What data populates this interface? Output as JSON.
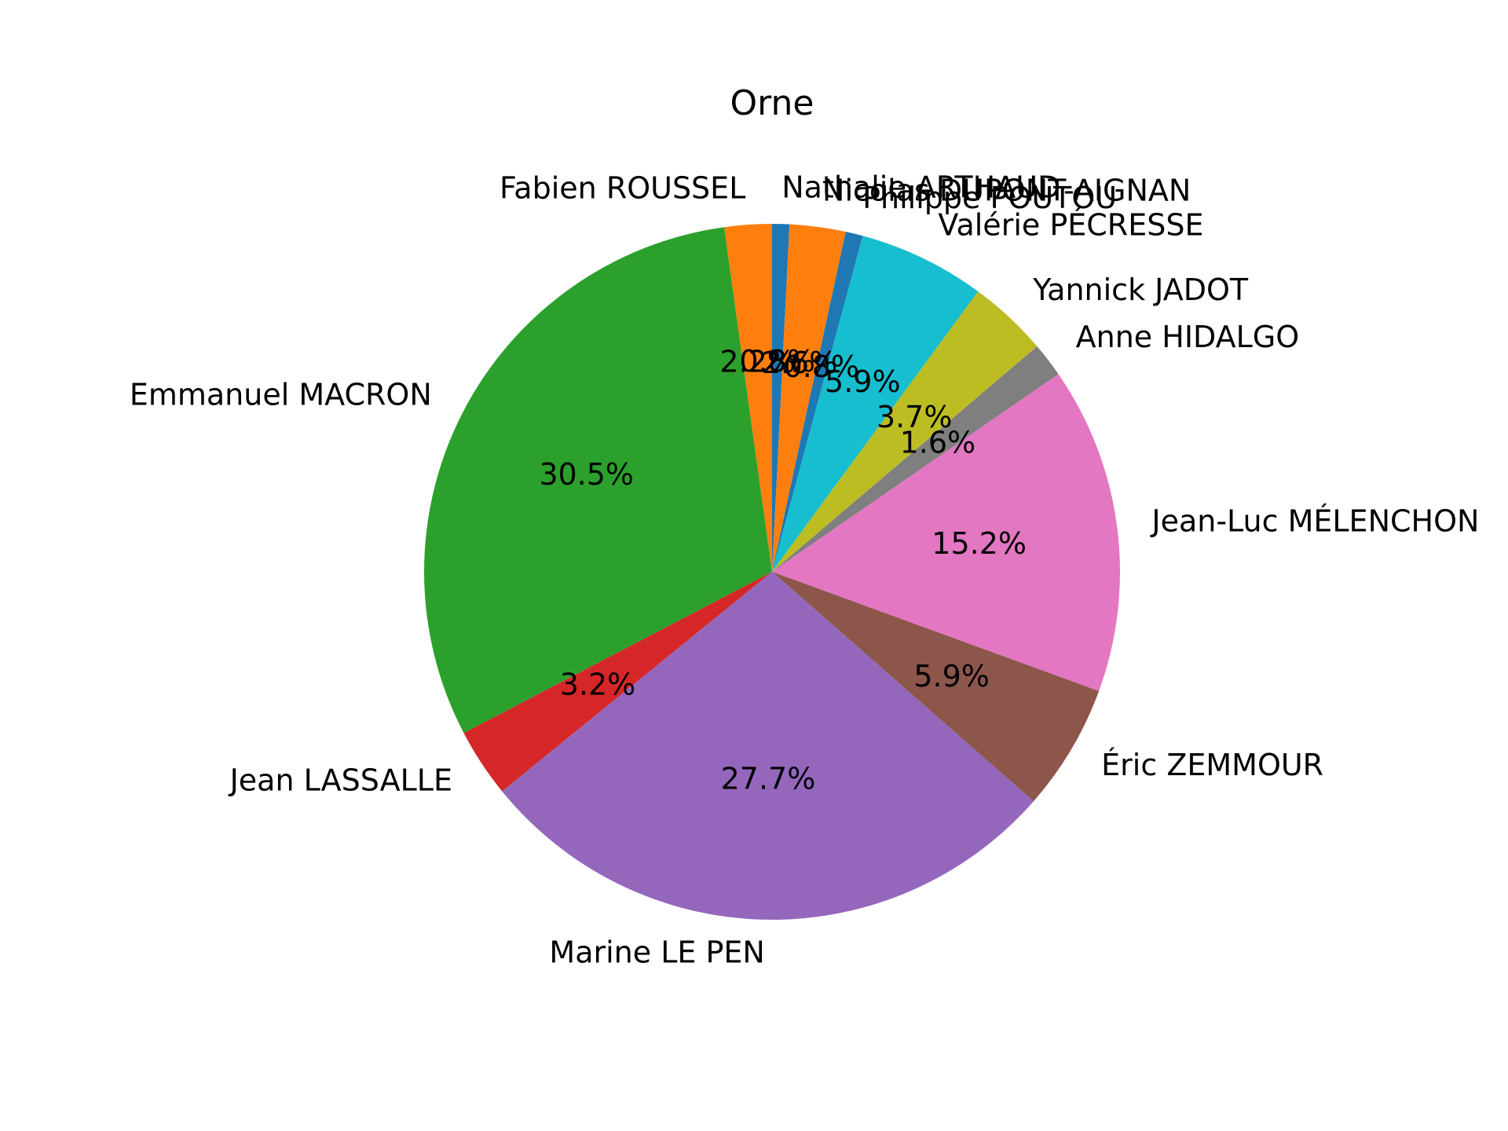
{
  "chart_data": {
    "type": "pie",
    "title": "Orne",
    "start_angle_deg": 90,
    "direction": "clockwise",
    "slices": [
      {
        "label": "Nathalie ARTHAUD",
        "value": 0.8,
        "pct_label": "0.8%",
        "color": "#1f77b4"
      },
      {
        "label": "Nicolas DUPONT-AIGNAN",
        "value": 2.6,
        "pct_label": "2.6%",
        "color": "#ff7f0e"
      },
      {
        "label": "Philippe POUTOU",
        "value": 0.8,
        "pct_label": "0.8%",
        "color": "#1f77b4"
      },
      {
        "label": "Valérie PÉCRESSE",
        "value": 5.9,
        "pct_label": "5.9%",
        "color": "#17becf"
      },
      {
        "label": "Yannick JADOT",
        "value": 3.7,
        "pct_label": "3.7%",
        "color": "#bcbd22"
      },
      {
        "label": "Anne HIDALGO",
        "value": 1.6,
        "pct_label": "1.6%",
        "color": "#7f7f7f"
      },
      {
        "label": "Jean-Luc MÉLENCHON",
        "value": 15.2,
        "pct_label": "15.2%",
        "color": "#e377c2"
      },
      {
        "label": "Éric ZEMMOUR",
        "value": 5.9,
        "pct_label": "5.9%",
        "color": "#8c564b"
      },
      {
        "label": "Marine LE PEN",
        "value": 27.7,
        "pct_label": "27.7%",
        "color": "#9467bd"
      },
      {
        "label": "Jean LASSALLE",
        "value": 3.2,
        "pct_label": "3.2%",
        "color": "#d62728"
      },
      {
        "label": "Emmanuel MACRON",
        "value": 30.5,
        "pct_label": "30.5%",
        "color": "#2ca02c"
      },
      {
        "label": "Fabien ROUSSEL",
        "value": 2.2,
        "pct_label": "2.2%",
        "color": "#ff7f0e"
      }
    ]
  }
}
